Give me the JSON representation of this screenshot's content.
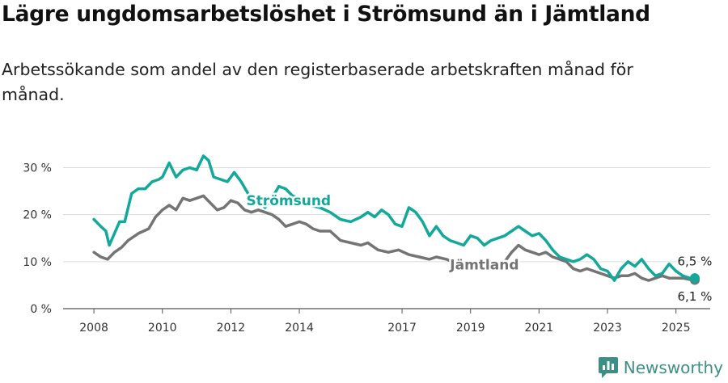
{
  "title": "Lägre ungdomsarbetslöshet i Strömsund än i Jämtland",
  "subtitle": "Arbetssökande som andel av den registerbaserade arbetskraften månad för månad.",
  "brand": "Newsworthy",
  "colors": {
    "stromsund": "#12a89a",
    "jamtland": "#747474",
    "grid": "#dcdcdc",
    "axis": "#555555",
    "brand": "#3d8f86"
  },
  "chart_data": {
    "type": "line",
    "title": "Lägre ungdomsarbetslöshet i Strömsund än i Jämtland",
    "subtitle": "Arbetssökande som andel av den registerbaserade arbetskraften månad för månad.",
    "x_ticks": [
      "2008",
      "2010",
      "2012",
      "2014",
      "2017",
      "2019",
      "2021",
      "2023",
      "2025"
    ],
    "x_tick_values": [
      2008,
      2010,
      2012,
      2014,
      2017,
      2019,
      2021,
      2023,
      2025
    ],
    "y_ticks": [
      "0 %",
      "10 %",
      "20 %",
      "30 %"
    ],
    "y_tick_values": [
      0,
      10,
      20,
      30
    ],
    "xlim": [
      2007.1,
      2026.0
    ],
    "ylim": [
      0,
      33
    ],
    "grid": true,
    "series": [
      {
        "name": "Strömsund",
        "end_label": "6,5 %",
        "x": [
          2008.0,
          2008.2,
          2008.35,
          2008.45,
          2008.6,
          2008.75,
          2008.9,
          2009.1,
          2009.3,
          2009.5,
          2009.7,
          2009.9,
          2010.0,
          2010.2,
          2010.4,
          2010.6,
          2010.8,
          2011.0,
          2011.2,
          2011.35,
          2011.5,
          2011.7,
          2011.9,
          2012.1,
          2012.3,
          2012.5,
          2012.6,
          2012.8,
          2013.0,
          2013.2,
          2013.4,
          2013.6,
          2013.8,
          2014.0,
          2014.3,
          2014.6,
          2014.9,
          2015.2,
          2015.5,
          2015.8,
          2016.0,
          2016.2,
          2016.4,
          2016.6,
          2016.8,
          2017.0,
          2017.2,
          2017.4,
          2017.6,
          2017.8,
          2018.0,
          2018.2,
          2018.4,
          2018.6,
          2018.8,
          2019.0,
          2019.2,
          2019.4,
          2019.6,
          2019.8,
          2020.0,
          2020.2,
          2020.4,
          2020.6,
          2020.8,
          2021.0,
          2021.2,
          2021.4,
          2021.6,
          2021.8,
          2022.0,
          2022.2,
          2022.4,
          2022.6,
          2022.8,
          2023.0,
          2023.2,
          2023.4,
          2023.6,
          2023.8,
          2024.0,
          2024.2,
          2024.4,
          2024.6,
          2024.8,
          2025.0,
          2025.2,
          2025.4,
          2025.55
        ],
        "y": [
          19,
          17.5,
          16.5,
          13.5,
          16,
          18.5,
          18.5,
          24.5,
          25.5,
          25.5,
          27,
          27.5,
          28,
          31,
          28,
          29.5,
          30,
          29.5,
          32.5,
          31.5,
          28,
          27.5,
          27,
          29,
          27,
          24.5,
          22.5,
          23,
          21.5,
          23.5,
          26,
          25.5,
          24,
          23.5,
          22,
          21.5,
          20.5,
          19,
          18.5,
          19.5,
          20.5,
          19.5,
          21,
          20,
          18,
          17.5,
          21.5,
          20.5,
          18.5,
          15.5,
          17.5,
          15.5,
          14.5,
          14,
          13.5,
          15.5,
          15,
          13.5,
          14.5,
          15,
          15.5,
          16.5,
          17.5,
          16.5,
          15.5,
          16,
          14.5,
          12.5,
          11,
          10.5,
          10,
          10.5,
          11.5,
          10.5,
          8.5,
          8,
          6,
          8.5,
          10,
          9,
          10.5,
          8.5,
          7,
          7.5,
          9.5,
          8,
          7,
          6.5,
          6.5
        ]
      },
      {
        "name": "Jämtland",
        "end_label": "6,1 %",
        "x": [
          2008.0,
          2008.2,
          2008.4,
          2008.6,
          2008.8,
          2009.0,
          2009.3,
          2009.6,
          2009.8,
          2010.0,
          2010.2,
          2010.4,
          2010.6,
          2010.8,
          2011.0,
          2011.2,
          2011.4,
          2011.6,
          2011.8,
          2012.0,
          2012.2,
          2012.4,
          2012.6,
          2012.8,
          2013.0,
          2013.2,
          2013.4,
          2013.6,
          2013.8,
          2014.0,
          2014.2,
          2014.4,
          2014.6,
          2014.9,
          2015.2,
          2015.5,
          2015.8,
          2016.0,
          2016.3,
          2016.6,
          2016.9,
          2017.2,
          2017.5,
          2017.8,
          2018.0,
          2018.3,
          2018.6,
          2018.9,
          2019.2,
          2019.5,
          2019.8,
          2020.0,
          2020.2,
          2020.4,
          2020.6,
          2020.8,
          2021.0,
          2021.2,
          2021.4,
          2021.6,
          2021.8,
          2022.0,
          2022.2,
          2022.4,
          2022.6,
          2022.8,
          2023.0,
          2023.2,
          2023.4,
          2023.6,
          2023.8,
          2024.0,
          2024.2,
          2024.4,
          2024.6,
          2024.8,
          2025.0,
          2025.2,
          2025.4,
          2025.55
        ],
        "y": [
          12,
          11,
          10.5,
          12,
          13,
          14.5,
          16,
          17,
          19.5,
          21,
          22,
          21,
          23.5,
          23,
          23.5,
          24,
          22.5,
          21,
          21.5,
          23,
          22.5,
          21,
          20.5,
          21,
          20.5,
          20,
          19,
          17.5,
          18,
          18.5,
          18,
          17,
          16.5,
          16.5,
          14.5,
          14,
          13.5,
          14,
          12.5,
          12,
          12.5,
          11.5,
          11,
          10.5,
          11,
          10.5,
          9.5,
          9,
          8.5,
          9,
          9,
          10,
          12,
          13.5,
          12.5,
          12,
          11.5,
          12,
          11,
          10.5,
          10,
          8.5,
          8,
          8.5,
          8,
          7.5,
          7,
          6.5,
          7,
          7,
          7.5,
          6.5,
          6,
          6.5,
          7,
          6.5,
          6.5,
          6.5,
          6.2,
          6.1
        ]
      }
    ],
    "line_labels": [
      "Strömsund",
      "Jämtland"
    ]
  }
}
